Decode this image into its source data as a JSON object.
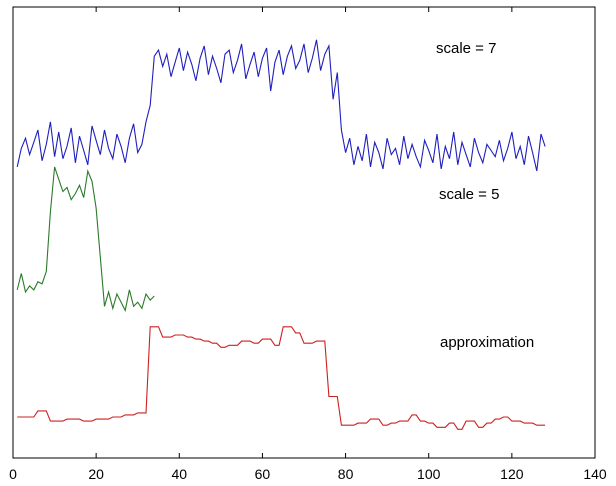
{
  "chart_data": {
    "type": "line",
    "title": "",
    "xlabel": "",
    "ylabel": "",
    "xlim": [
      0,
      140
    ],
    "x_ticks": [
      "0",
      "20",
      "40",
      "60",
      "80",
      "100",
      "120",
      "140"
    ],
    "y_ticks_shown": false,
    "grid": false,
    "legend": "none",
    "annotations": [
      "scale = 7",
      "scale = 5",
      "approximation"
    ],
    "series": [
      {
        "name": "scale = 7",
        "color": "#1f1fbf",
        "x": [
          1,
          2,
          3,
          4,
          5,
          6,
          7,
          8,
          9,
          10,
          11,
          12,
          13,
          14,
          15,
          16,
          17,
          18,
          19,
          20,
          21,
          22,
          23,
          24,
          25,
          26,
          27,
          28,
          29,
          30,
          31,
          32,
          33,
          34,
          35,
          36,
          37,
          38,
          39,
          40,
          41,
          42,
          43,
          44,
          45,
          46,
          47,
          48,
          49,
          50,
          51,
          52,
          53,
          54,
          55,
          56,
          57,
          58,
          59,
          60,
          61,
          62,
          63,
          64,
          65,
          66,
          67,
          68,
          69,
          70,
          71,
          72,
          73,
          74,
          75,
          76,
          77,
          78,
          79,
          80,
          81,
          82,
          83,
          84,
          85,
          86,
          87,
          88,
          89,
          90,
          91,
          92,
          93,
          94,
          95,
          96,
          97,
          98,
          99,
          100,
          101,
          102,
          103,
          104,
          105,
          106,
          107,
          108,
          109,
          110,
          111,
          112,
          113,
          114,
          115,
          116,
          117,
          118,
          119,
          120,
          121,
          122,
          123,
          124,
          125,
          126,
          127,
          128
        ],
        "values": [
          14.2,
          15.1,
          15.6,
          14.8,
          15.4,
          16.0,
          14.5,
          15.3,
          16.4,
          14.7,
          15.9,
          14.6,
          15.2,
          16.1,
          14.4,
          15.7,
          15.0,
          14.3,
          16.2,
          15.5,
          14.8,
          16.0,
          15.1,
          14.6,
          15.8,
          15.2,
          14.4,
          15.6,
          16.3,
          14.9,
          15.3,
          16.4,
          17.2,
          19.6,
          19.9,
          19.1,
          19.7,
          18.6,
          19.3,
          20.0,
          18.9,
          19.8,
          19.2,
          18.4,
          19.5,
          20.1,
          18.7,
          19.6,
          19.0,
          18.3,
          19.7,
          19.9,
          18.8,
          19.4,
          20.2,
          18.5,
          19.2,
          19.8,
          18.6,
          19.5,
          20.0,
          17.9,
          19.3,
          19.9,
          18.7,
          19.6,
          20.1,
          19.0,
          19.4,
          20.2,
          18.8,
          19.5,
          20.4,
          18.9,
          19.7,
          20.1,
          17.5,
          18.8,
          16.0,
          14.9,
          15.6,
          14.3,
          15.2,
          14.5,
          15.8,
          14.2,
          15.4,
          14.9,
          14.1,
          15.6,
          14.8,
          15.1,
          14.3,
          15.7,
          14.6,
          15.3,
          14.7,
          14.2,
          15.5,
          15.0,
          14.4,
          15.8,
          14.1,
          15.2,
          14.6,
          15.9,
          14.3,
          15.4,
          14.8,
          14.2,
          15.6,
          14.9,
          14.4,
          15.3,
          15.0,
          14.7,
          15.5,
          14.5,
          15.1,
          15.9,
          14.6,
          15.2,
          14.3,
          15.7,
          14.9,
          14.0,
          15.8,
          15.2
        ]
      },
      {
        "name": "scale = 5",
        "color": "#2a7a2a",
        "x": [
          1,
          2,
          3,
          4,
          5,
          6,
          7,
          8,
          9,
          10,
          11,
          12,
          13,
          14,
          15,
          16,
          17,
          18,
          19,
          20,
          21,
          22,
          23,
          24,
          25,
          26,
          27,
          28,
          29,
          30,
          31,
          32,
          33,
          34
        ],
        "values": [
          8.2,
          9.0,
          8.1,
          8.4,
          8.2,
          8.6,
          8.5,
          9.1,
          12.0,
          14.2,
          13.6,
          13.0,
          13.2,
          12.6,
          12.9,
          13.3,
          12.7,
          14.0,
          13.5,
          12.2,
          9.8,
          7.4,
          8.1,
          7.3,
          8.0,
          7.6,
          7.2,
          8.2,
          7.4,
          7.6,
          7.3,
          8.0,
          7.7,
          7.9
        ]
      },
      {
        "name": "approximation",
        "color": "#cc2020",
        "x": [
          1,
          2,
          3,
          4,
          5,
          6,
          7,
          8,
          9,
          10,
          11,
          12,
          13,
          14,
          15,
          16,
          17,
          18,
          19,
          20,
          21,
          22,
          23,
          24,
          25,
          26,
          27,
          28,
          29,
          30,
          31,
          32,
          33,
          34,
          35,
          36,
          37,
          38,
          39,
          40,
          41,
          42,
          43,
          44,
          45,
          46,
          47,
          48,
          49,
          50,
          51,
          52,
          53,
          54,
          55,
          56,
          57,
          58,
          59,
          60,
          61,
          62,
          63,
          64,
          65,
          66,
          67,
          68,
          69,
          70,
          71,
          72,
          73,
          74,
          75,
          76,
          77,
          78,
          79,
          80,
          81,
          82,
          83,
          84,
          85,
          86,
          87,
          88,
          89,
          90,
          91,
          92,
          93,
          94,
          95,
          96,
          97,
          98,
          99,
          100,
          101,
          102,
          103,
          104,
          105,
          106,
          107,
          108,
          109,
          110,
          111,
          112,
          113,
          114,
          115,
          116,
          117,
          118,
          119,
          120,
          121,
          122,
          123,
          124,
          125,
          126,
          127,
          128
        ],
        "values": [
          2.0,
          2.0,
          2.0,
          2.0,
          2.0,
          2.3,
          2.3,
          2.3,
          1.8,
          1.8,
          1.8,
          1.8,
          1.9,
          1.9,
          1.9,
          1.9,
          1.8,
          1.8,
          1.8,
          1.9,
          1.9,
          1.9,
          1.9,
          2.0,
          2.0,
          2.0,
          2.1,
          2.1,
          2.1,
          2.2,
          2.2,
          2.2,
          6.4,
          6.4,
          6.4,
          5.9,
          5.9,
          5.9,
          6.0,
          6.0,
          6.0,
          5.9,
          5.9,
          5.8,
          5.8,
          5.7,
          5.7,
          5.6,
          5.6,
          5.4,
          5.4,
          5.5,
          5.5,
          5.5,
          5.7,
          5.7,
          5.7,
          5.6,
          5.6,
          5.8,
          5.8,
          5.8,
          5.5,
          5.5,
          6.4,
          6.4,
          6.4,
          6.1,
          6.1,
          5.6,
          5.6,
          5.6,
          5.7,
          5.7,
          5.7,
          3.0,
          3.0,
          3.0,
          1.6,
          1.6,
          1.6,
          1.6,
          1.7,
          1.7,
          1.7,
          1.9,
          1.9,
          1.9,
          1.6,
          1.6,
          1.7,
          1.7,
          1.8,
          1.8,
          1.8,
          2.1,
          2.1,
          1.8,
          1.8,
          1.7,
          1.7,
          1.5,
          1.5,
          1.5,
          1.7,
          1.7,
          1.4,
          1.4,
          1.8,
          1.8,
          1.8,
          1.5,
          1.5,
          1.7,
          1.7,
          1.9,
          1.9,
          2.0,
          2.0,
          1.8,
          1.8,
          1.8,
          1.7,
          1.7,
          1.7,
          1.6,
          1.6,
          1.6
        ]
      }
    ]
  }
}
